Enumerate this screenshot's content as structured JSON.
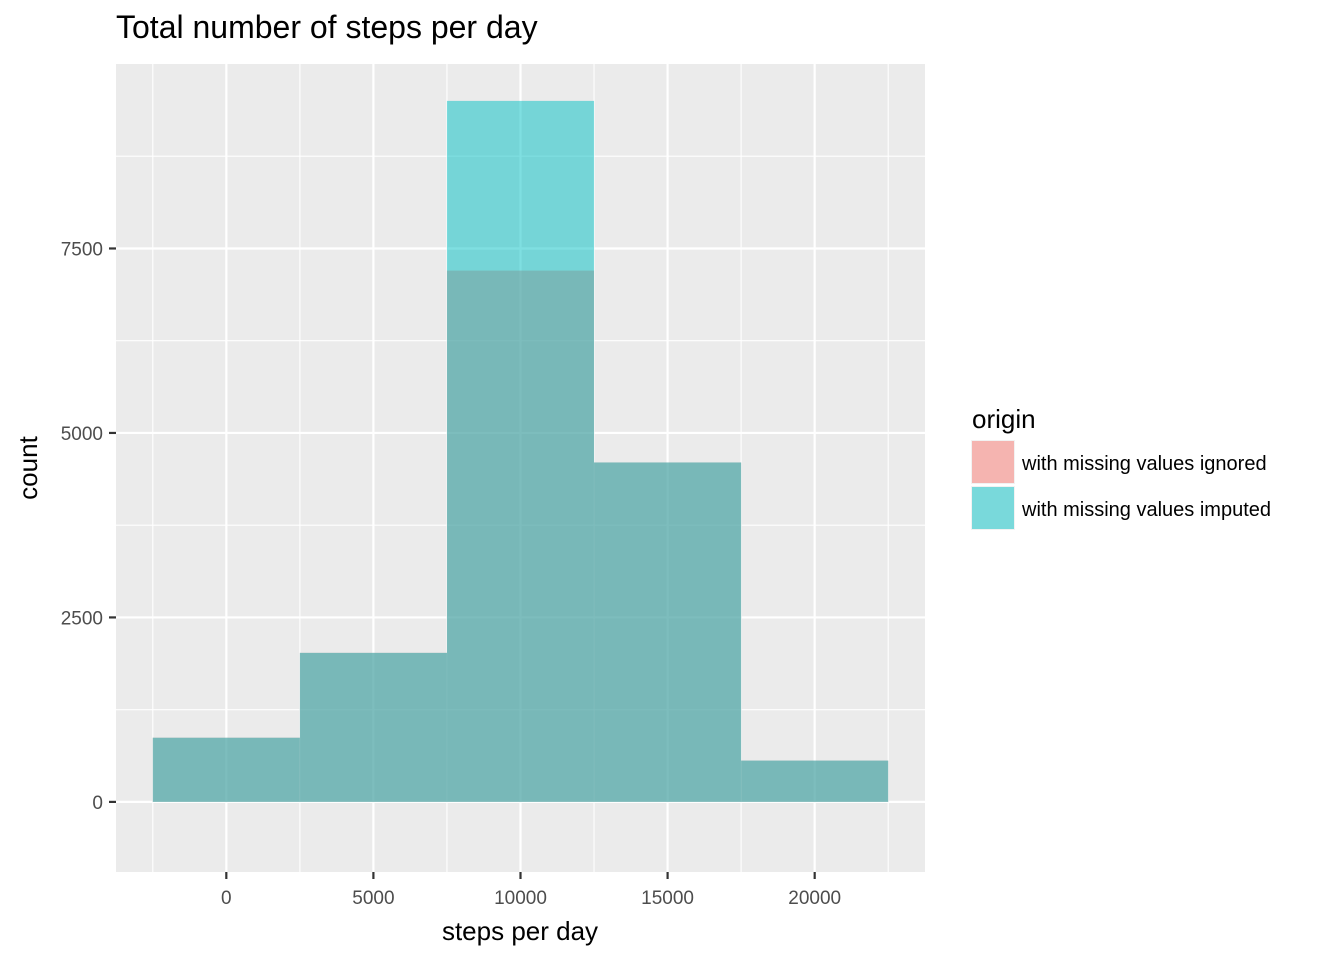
{
  "chart_data": {
    "type": "bar",
    "title": "Total number of steps per day",
    "xlabel": "steps per day",
    "ylabel": "count",
    "xlim": [
      -3750,
      23750
    ],
    "ylim": [
      -950,
      10000
    ],
    "x_ticks": [
      0,
      5000,
      10000,
      15000,
      20000
    ],
    "y_ticks": [
      0,
      2500,
      5000,
      7500
    ],
    "x_tick_labels": [
      "0",
      "5000",
      "10000",
      "15000",
      "20000"
    ],
    "y_tick_labels": [
      "0",
      "2500",
      "5000",
      "7500"
    ],
    "bin_width": 5000,
    "bins": [
      {
        "x0": -2500,
        "x1": 2500
      },
      {
        "x0": 2500,
        "x1": 7500
      },
      {
        "x0": 7500,
        "x1": 12500
      },
      {
        "x0": 12500,
        "x1": 17500
      },
      {
        "x0": 17500,
        "x1": 22500
      }
    ],
    "series": [
      {
        "name": "with missing values ignored",
        "color": "#F8766D",
        "values": [
          870,
          2020,
          7200,
          4600,
          560
        ]
      },
      {
        "name": "with missing values imputed",
        "color": "#00BFC4",
        "values": [
          870,
          2020,
          9500,
          4600,
          560
        ]
      }
    ],
    "bar_alpha": 0.5,
    "grid": true,
    "panel_background": "#EBEBEB",
    "grid_color": "#FFFFFF",
    "legend": {
      "title": "origin",
      "placement": "right",
      "entries": [
        "with missing values ignored",
        "with missing values imputed"
      ]
    }
  }
}
